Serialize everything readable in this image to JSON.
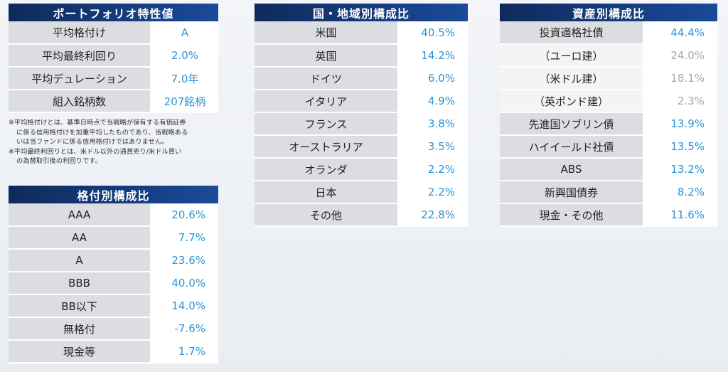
{
  "characteristics": {
    "title": "ポートフォリオ特性値",
    "rows": [
      {
        "label": "平均格付け",
        "value": "A"
      },
      {
        "label": "平均最終利回り",
        "value": "2.0%"
      },
      {
        "label": "平均デュレーション",
        "value": "7.0年"
      },
      {
        "label": "組入銘柄数",
        "value": "207銘柄"
      }
    ],
    "notes": [
      "※平均格付けとは、基準日時点で当戦略が保有する有価証券",
      "に係る信用格付けを加重平均したものであり、当戦略ある",
      "いは当ファンドに係る信用格付けではありません。",
      "※平均最終利回りとは、米ドル以外の通貨売り/米ドル買い",
      "の為替取引後の利回りです。"
    ]
  },
  "rating": {
    "title": "格付別構成比",
    "rows": [
      {
        "label": "AAA",
        "value": "20.6%"
      },
      {
        "label": "AA",
        "value": "7.7%"
      },
      {
        "label": "A",
        "value": "23.6%"
      },
      {
        "label": "BBB",
        "value": "40.0%"
      },
      {
        "label": "BB以下",
        "value": "14.0%"
      },
      {
        "label": "無格付",
        "value": "-7.6%"
      },
      {
        "label": "現金等",
        "value": "1.7%"
      }
    ]
  },
  "country": {
    "title": "国・地域別構成比",
    "rows": [
      {
        "label": "米国",
        "value": "40.5%"
      },
      {
        "label": "英国",
        "value": "14.2%"
      },
      {
        "label": "ドイツ",
        "value": "6.0%"
      },
      {
        "label": "イタリア",
        "value": "4.9%"
      },
      {
        "label": "フランス",
        "value": "3.8%"
      },
      {
        "label": "オーストラリア",
        "value": "3.5%"
      },
      {
        "label": "オランダ",
        "value": "2.2%"
      },
      {
        "label": "日本",
        "value": "2.2%"
      },
      {
        "label": "その他",
        "value": "22.8%"
      }
    ]
  },
  "asset": {
    "title": "資産別構成比",
    "rows": [
      {
        "label": "投資適格社債",
        "value": "44.4%",
        "sub": false
      },
      {
        "label": "（ユーロ建）",
        "value": "24.0%",
        "sub": true
      },
      {
        "label": "（米ドル建）",
        "value": "18.1%",
        "sub": true
      },
      {
        "label": "（英ポンド建）",
        "value": "2.3%",
        "sub": true
      },
      {
        "label": "先進国ソブリン債",
        "value": "13.9%",
        "sub": false
      },
      {
        "label": "ハイイールド社債",
        "value": "13.5%",
        "sub": false
      },
      {
        "label": "ABS",
        "value": "13.2%",
        "sub": false
      },
      {
        "label": "新興国債券",
        "value": "8.2%",
        "sub": false
      },
      {
        "label": "現金・その他",
        "value": "11.6%",
        "sub": false
      }
    ]
  }
}
